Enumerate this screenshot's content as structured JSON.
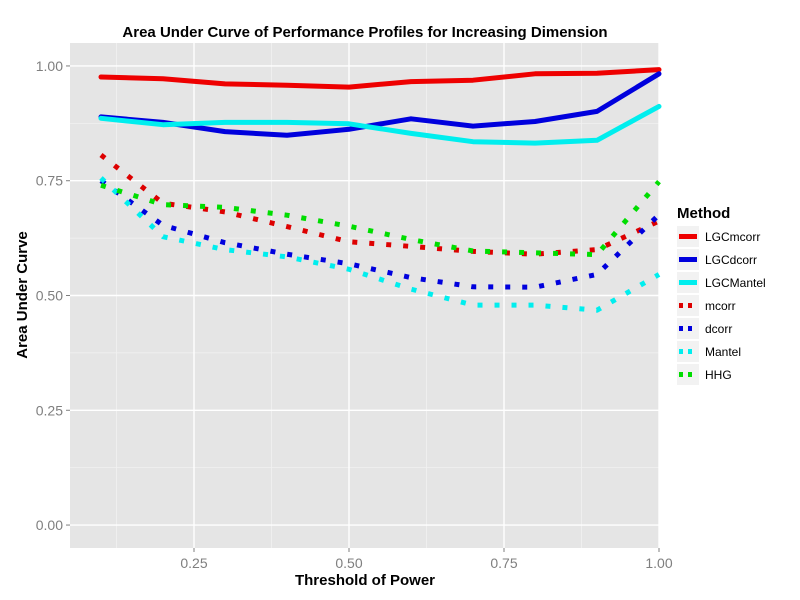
{
  "chart_data": {
    "type": "line",
    "title": "Area Under Curve of Performance Profiles for Increasing Dimension",
    "xlabel": "Threshold of Power",
    "ylabel": "Area Under Curve",
    "xlim": [
      0.05,
      1.0
    ],
    "ylim": [
      -0.05,
      1.05
    ],
    "xticks": [
      0.25,
      0.5,
      0.75,
      1.0
    ],
    "xtick_labels": [
      "0.25",
      "0.50",
      "0.75",
      "1.00"
    ],
    "yticks": [
      0.0,
      0.25,
      0.5,
      0.75,
      1.0
    ],
    "ytick_labels": [
      "0.00",
      "0.25",
      "0.50",
      "0.75",
      "1.00"
    ],
    "grid": true,
    "legend": {
      "title": "Method",
      "position": "right"
    },
    "x": [
      0.1,
      0.2,
      0.3,
      0.4,
      0.5,
      0.6,
      0.7,
      0.8,
      0.9,
      1.0
    ],
    "series": [
      {
        "name": "LGCmcorr",
        "style": "solid",
        "color": "#ee0000",
        "values": [
          0.976,
          0.972,
          0.961,
          0.958,
          0.954,
          0.966,
          0.969,
          0.983,
          0.984,
          0.992
        ]
      },
      {
        "name": "LGCdcorr",
        "style": "solid",
        "color": "#0000dd",
        "values": [
          0.889,
          0.877,
          0.857,
          0.849,
          0.862,
          0.885,
          0.869,
          0.879,
          0.901,
          0.983
        ]
      },
      {
        "name": "LGCMantel",
        "style": "solid",
        "color": "#00eeee",
        "values": [
          0.886,
          0.872,
          0.877,
          0.877,
          0.874,
          0.853,
          0.835,
          0.832,
          0.838,
          0.912
        ]
      },
      {
        "name": "mcorr",
        "style": "dotted",
        "color": "#dd0000",
        "values": [
          0.806,
          0.701,
          0.682,
          0.65,
          0.617,
          0.607,
          0.596,
          0.59,
          0.6,
          0.662
        ]
      },
      {
        "name": "dcorr",
        "style": "dotted",
        "color": "#0000dd",
        "values": [
          0.75,
          0.653,
          0.615,
          0.59,
          0.569,
          0.539,
          0.519,
          0.518,
          0.546,
          0.676
        ]
      },
      {
        "name": "Mantel",
        "style": "dotted",
        "color": "#00eeee",
        "values": [
          0.756,
          0.628,
          0.6,
          0.584,
          0.557,
          0.514,
          0.479,
          0.479,
          0.468,
          0.546
        ]
      },
      {
        "name": "HHG",
        "style": "dotted",
        "color": "#00dd00",
        "values": [
          0.74,
          0.698,
          0.692,
          0.675,
          0.651,
          0.622,
          0.597,
          0.593,
          0.589,
          0.748
        ]
      }
    ]
  }
}
